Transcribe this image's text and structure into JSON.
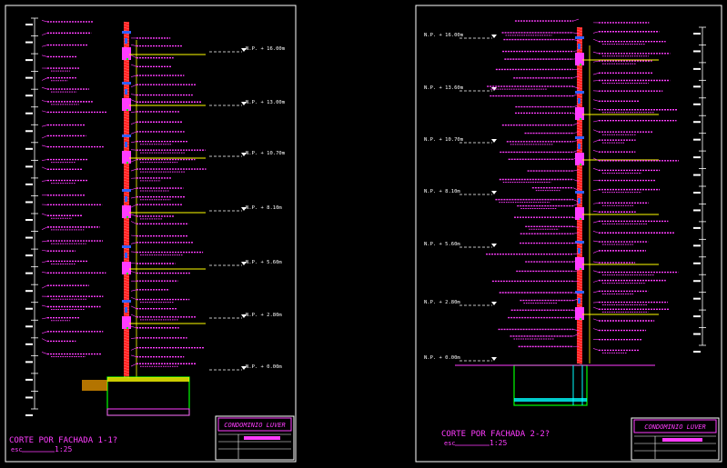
{
  "colors": {
    "background": "#000000",
    "frame": "#ffffff",
    "annotation": "#ff3cff",
    "wall": "#ff2020",
    "slab": "#ffff00",
    "steel": "#00ffff",
    "glass": "#3060ff",
    "green": "#00ff00",
    "white": "#ffffff"
  },
  "sheet_left": {
    "caption_title": "CORTE POR FACHADA  1-1?",
    "caption_scale_prefix": "esc",
    "caption_scale": "1:25",
    "titleblock_project": "CONDOMINIO LUVER",
    "levels": [
      "N.P. + 16.00m",
      "N.P. + 13.00m",
      "N.P. + 10.70m",
      "N.P. + 8.10m",
      "N.P. + 5.60m",
      "N.P. + 2.80m",
      "N.P. + 0.00m"
    ]
  },
  "sheet_right": {
    "caption_title": "CORTE POR FACHADA  2-2?",
    "caption_scale_prefix": "esc",
    "caption_scale": "1:25",
    "titleblock_project": "CONDOMINIO LUVER",
    "levels": [
      "N.P. + 16.00m",
      "N.P. + 13.60m",
      "N.P. + 10.70m",
      "N.P. + 8.10m",
      "N.P. + 5.60m",
      "N.P. + 2.80m",
      "N.P. + 0.00m"
    ]
  }
}
